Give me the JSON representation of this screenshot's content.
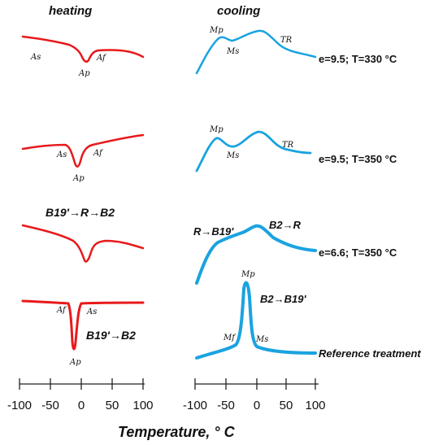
{
  "headers": {
    "heating": "heating",
    "cooling": "cooling"
  },
  "colors": {
    "heating": "#e8191b",
    "cooling": "#1aa3e0",
    "axis": "#222222"
  },
  "rows": [
    {
      "condition": "e=9.5; T=330 °C",
      "heating_labels": [
        "As",
        "Ap",
        "Af"
      ],
      "cooling_labels": [
        "Mp",
        "Ms",
        "TR"
      ]
    },
    {
      "condition": "e=9.5; T=350 °C",
      "heating_labels": [
        "As",
        "Ap",
        "Af"
      ],
      "cooling_labels": [
        "Mp",
        "Ms",
        "TR"
      ]
    },
    {
      "condition": "e=6.6; T=350 °C",
      "heating_transformation": "B19'→R→B2",
      "cooling_transformations": [
        "R→B19'",
        "B2→R"
      ]
    },
    {
      "condition": "Reference treatment",
      "heating_labels": [
        "Af",
        "As",
        "Ap"
      ],
      "heating_transformation": "B19'→B2",
      "cooling_labels": [
        "Mp",
        "Mf",
        "Ms"
      ],
      "cooling_transformation": "B2→B19'"
    }
  ],
  "axis": {
    "xlabel": "Temperature, ° C",
    "heating_ticks": [
      "-100",
      "-50",
      "0",
      "50",
      "100"
    ],
    "cooling_ticks": [
      "-100",
      "-50",
      "0",
      "50",
      "100"
    ]
  }
}
